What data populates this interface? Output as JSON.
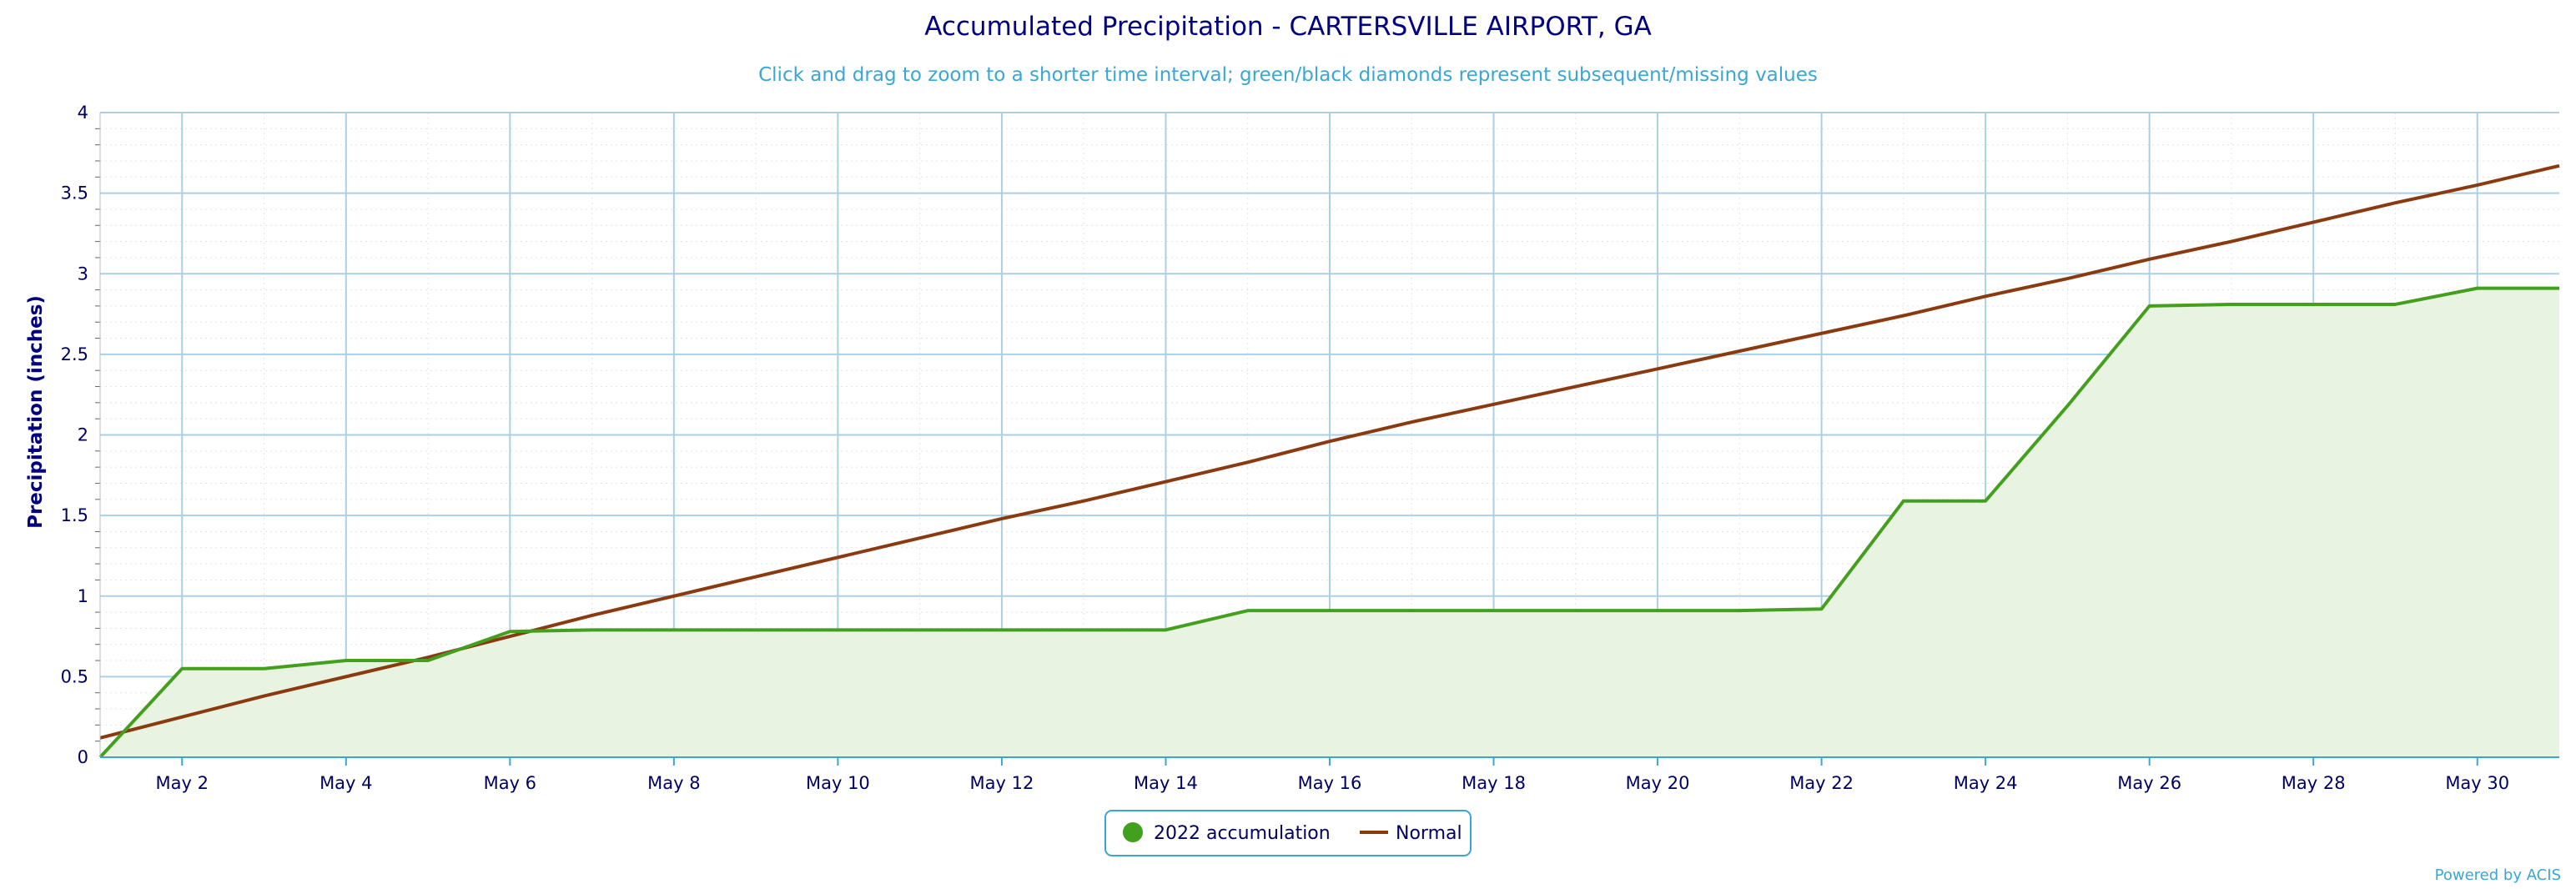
{
  "chart_data": {
    "type": "area",
    "title": "Accumulated Precipitation - CARTERSVILLE AIRPORT, GA",
    "subtitle": "Click and drag to zoom to a shorter time interval; green/black diamonds represent subsequent/missing values",
    "ylabel": "Precipitation (inches)",
    "xlabel": "",
    "ylim": [
      0,
      4
    ],
    "yticks": [
      "0",
      "0.5",
      "1",
      "1.5",
      "2",
      "2.5",
      "3",
      "3.5",
      "4"
    ],
    "xlim": [
      1,
      31
    ],
    "xticks": [
      {
        "day": 2,
        "label": "May 2"
      },
      {
        "day": 4,
        "label": "May 4"
      },
      {
        "day": 6,
        "label": "May 6"
      },
      {
        "day": 8,
        "label": "May 8"
      },
      {
        "day": 10,
        "label": "May 10"
      },
      {
        "day": 12,
        "label": "May 12"
      },
      {
        "day": 14,
        "label": "May 14"
      },
      {
        "day": 16,
        "label": "May 16"
      },
      {
        "day": 18,
        "label": "May 18"
      },
      {
        "day": 20,
        "label": "May 20"
      },
      {
        "day": 22,
        "label": "May 22"
      },
      {
        "day": 24,
        "label": "May 24"
      },
      {
        "day": 26,
        "label": "May 26"
      },
      {
        "day": 28,
        "label": "May 28"
      },
      {
        "day": 30,
        "label": "May 30"
      }
    ],
    "grid": true,
    "legend_position": "bottom-center",
    "series": [
      {
        "name": "2022 accumulation",
        "color": "#43a01e",
        "fill": "#e9f3e2",
        "x": [
          1,
          2,
          3,
          4,
          5,
          6,
          7,
          8,
          9,
          10,
          11,
          12,
          13,
          14,
          15,
          16,
          17,
          18,
          19,
          20,
          21,
          22,
          23,
          24,
          25,
          26,
          27,
          28,
          29,
          30,
          31
        ],
        "values": [
          0,
          0.55,
          0.55,
          0.6,
          0.6,
          0.78,
          0.79,
          0.79,
          0.79,
          0.79,
          0.79,
          0.79,
          0.79,
          0.79,
          0.91,
          0.91,
          0.91,
          0.91,
          0.91,
          0.91,
          0.91,
          0.92,
          1.59,
          1.59,
          2.18,
          2.8,
          2.81,
          2.81,
          2.81,
          2.91,
          2.91
        ]
      },
      {
        "name": "Normal",
        "color": "#8b3a10",
        "x": [
          1,
          2,
          3,
          4,
          5,
          6,
          7,
          8,
          9,
          10,
          11,
          12,
          13,
          14,
          15,
          16,
          17,
          18,
          19,
          20,
          21,
          22,
          23,
          24,
          25,
          26,
          27,
          28,
          29,
          30,
          31
        ],
        "values": [
          0.12,
          0.25,
          0.38,
          0.5,
          0.62,
          0.75,
          0.88,
          1.0,
          1.12,
          1.24,
          1.36,
          1.48,
          1.59,
          1.71,
          1.83,
          1.96,
          2.08,
          2.19,
          2.3,
          2.41,
          2.52,
          2.63,
          2.74,
          2.86,
          2.97,
          3.09,
          3.2,
          3.32,
          3.44,
          3.55,
          3.67
        ]
      }
    ]
  },
  "credit": "Powered by ACIS"
}
